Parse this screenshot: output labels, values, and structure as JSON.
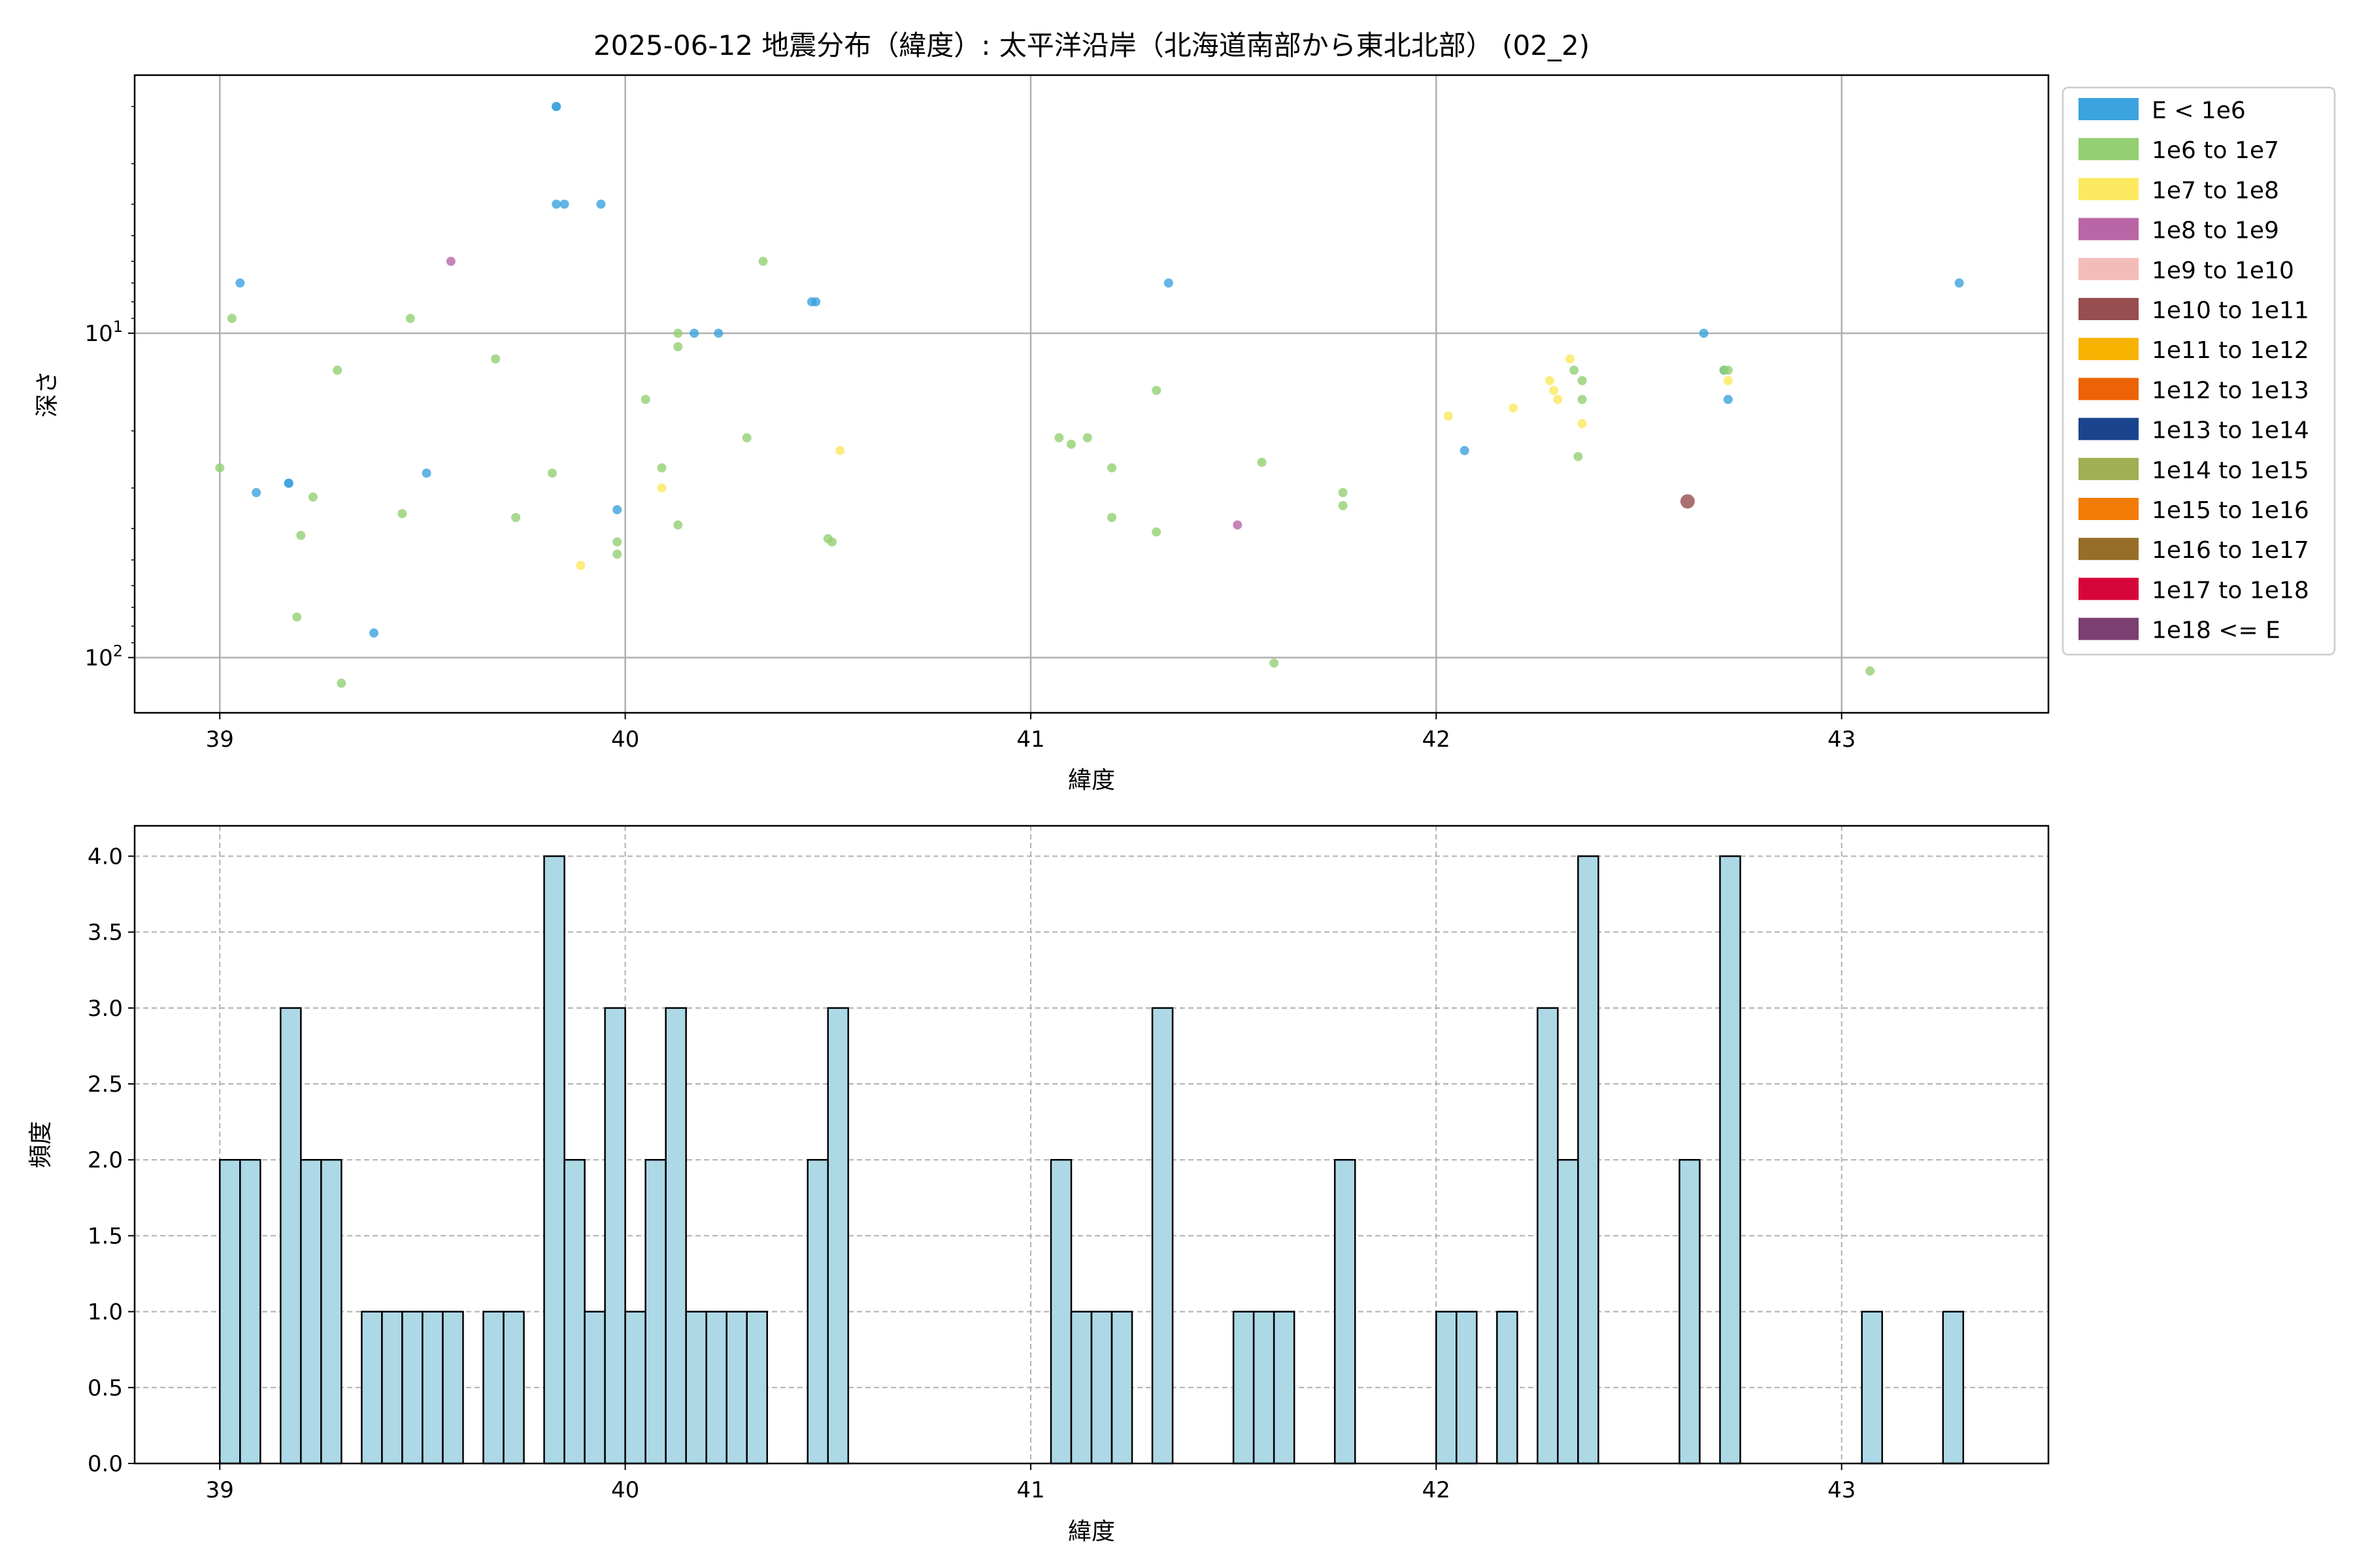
{
  "title": "2025-06-12 地震分布（緯度）: 太平洋沿岸（北海道南部から東北北部） (02_2)",
  "chart_data": [
    {
      "type": "scatter",
      "xlabel": "緯度",
      "ylabel": "深さ",
      "xlim": [
        38.79,
        43.51
      ],
      "ylim": [
        148,
        1.6
      ],
      "yscale": "log",
      "y_inverted": true,
      "grid": true,
      "xticks": [
        39,
        40,
        41,
        42,
        43
      ],
      "yticks": [
        {
          "value": 10,
          "base": "10",
          "exp": "1"
        },
        {
          "value": 100,
          "base": "10",
          "exp": "2"
        }
      ],
      "legend": {
        "placement": "outside-right",
        "entries": [
          {
            "label": "E < 1e6",
            "color": "#3ba3dd"
          },
          {
            "label": "1e6 to 1e7",
            "color": "#93cf73"
          },
          {
            "label": "1e7 to 1e8",
            "color": "#fde95f"
          },
          {
            "label": "1e8 to 1e9",
            "color": "#b966a6"
          },
          {
            "label": "1e9 to 1e10",
            "color": "#f4bcb9"
          },
          {
            "label": "1e10 to 1e11",
            "color": "#964e4e"
          },
          {
            "label": "1e11 to 1e12",
            "color": "#f8b200"
          },
          {
            "label": "1e12 to 1e13",
            "color": "#ec6204"
          },
          {
            "label": "1e13 to 1e14",
            "color": "#1a448d"
          },
          {
            "label": "1e14 to 1e15",
            "color": "#9faf51"
          },
          {
            "label": "1e15 to 1e16",
            "color": "#f17b05"
          },
          {
            "label": "1e16 to 1e17",
            "color": "#976d28"
          },
          {
            "label": "1e17 to 1e18",
            "color": "#d7063a"
          },
          {
            "label": "1e18 <= E",
            "color": "#7b3f72"
          }
        ]
      },
      "series": [
        {
          "class": 0,
          "points": [
            [
              39.05,
              7
            ],
            [
              39.09,
              31
            ],
            [
              39.17,
              29
            ],
            [
              39.17,
              29
            ],
            [
              39.38,
              84
            ],
            [
              39.51,
              27
            ],
            [
              39.83,
              2
            ],
            [
              39.83,
              2
            ],
            [
              39.83,
              4
            ],
            [
              39.85,
              4
            ],
            [
              39.94,
              4
            ],
            [
              39.98,
              35
            ],
            [
              40.17,
              10
            ],
            [
              40.23,
              10
            ],
            [
              40.46,
              8
            ],
            [
              40.47,
              8
            ],
            [
              41.34,
              7
            ],
            [
              42.07,
              23
            ],
            [
              42.66,
              10
            ],
            [
              42.71,
              13
            ],
            [
              42.72,
              16
            ],
            [
              43.29,
              7
            ]
          ]
        },
        {
          "class": 1,
          "points": [
            [
              39.0,
              26
            ],
            [
              39.03,
              9
            ],
            [
              39.19,
              75
            ],
            [
              39.2,
              42
            ],
            [
              39.23,
              32
            ],
            [
              39.29,
              13
            ],
            [
              39.3,
              120
            ],
            [
              39.45,
              36
            ],
            [
              39.47,
              9
            ],
            [
              39.68,
              12
            ],
            [
              39.73,
              37
            ],
            [
              39.82,
              27
            ],
            [
              39.98,
              44
            ],
            [
              39.98,
              48
            ],
            [
              40.05,
              16
            ],
            [
              40.09,
              26
            ],
            [
              40.13,
              10
            ],
            [
              40.13,
              11
            ],
            [
              40.13,
              39
            ],
            [
              40.3,
              21
            ],
            [
              40.34,
              6
            ],
            [
              40.5,
              43
            ],
            [
              40.51,
              44
            ],
            [
              41.07,
              21
            ],
            [
              41.1,
              22
            ],
            [
              41.14,
              21
            ],
            [
              41.2,
              26
            ],
            [
              41.2,
              37
            ],
            [
              41.31,
              15
            ],
            [
              41.31,
              41
            ],
            [
              41.57,
              25
            ],
            [
              41.6,
              104
            ],
            [
              41.77,
              31
            ],
            [
              41.77,
              34
            ],
            [
              42.34,
              13
            ],
            [
              42.35,
              24
            ],
            [
              42.36,
              14
            ],
            [
              42.36,
              16
            ],
            [
              42.71,
              13
            ],
            [
              42.72,
              13
            ],
            [
              43.07,
              110
            ]
          ]
        },
        {
          "class": 2,
          "points": [
            [
              39.89,
              52
            ],
            [
              40.09,
              30
            ],
            [
              40.53,
              23
            ],
            [
              42.03,
              18
            ],
            [
              42.19,
              17
            ],
            [
              42.28,
              14
            ],
            [
              42.29,
              15
            ],
            [
              42.3,
              16
            ],
            [
              42.33,
              12
            ],
            [
              42.36,
              19
            ],
            [
              42.72,
              14
            ]
          ]
        },
        {
          "class": 3,
          "points": [
            [
              39.57,
              6
            ],
            [
              41.51,
              39
            ]
          ]
        },
        {
          "class": 5,
          "points": [
            [
              42.62,
              33
            ]
          ]
        }
      ]
    },
    {
      "type": "bar",
      "xlabel": "緯度",
      "ylabel": "頻度",
      "xlim": [
        38.79,
        43.51
      ],
      "ylim": [
        0,
        4.2
      ],
      "grid": true,
      "xticks": [
        39,
        40,
        41,
        42,
        43
      ],
      "yticks": [
        "0.0",
        "0.5",
        "1.0",
        "1.5",
        "2.0",
        "2.5",
        "3.0",
        "3.5",
        "4.0"
      ],
      "bar_color": "#add8e6",
      "bin_width": 0.05,
      "bins": [
        [
          39.0,
          2
        ],
        [
          39.05,
          2
        ],
        [
          39.15,
          3
        ],
        [
          39.2,
          2
        ],
        [
          39.25,
          2
        ],
        [
          39.35,
          1
        ],
        [
          39.4,
          1
        ],
        [
          39.45,
          1
        ],
        [
          39.5,
          1
        ],
        [
          39.55,
          1
        ],
        [
          39.65,
          1
        ],
        [
          39.7,
          1
        ],
        [
          39.8,
          4
        ],
        [
          39.85,
          2
        ],
        [
          39.9,
          1
        ],
        [
          39.95,
          3
        ],
        [
          40.0,
          1
        ],
        [
          40.05,
          2
        ],
        [
          40.1,
          3
        ],
        [
          40.15,
          1
        ],
        [
          40.2,
          1
        ],
        [
          40.25,
          1
        ],
        [
          40.3,
          1
        ],
        [
          40.45,
          2
        ],
        [
          40.5,
          3
        ],
        [
          41.05,
          2
        ],
        [
          41.1,
          1
        ],
        [
          41.15,
          1
        ],
        [
          41.2,
          1
        ],
        [
          41.3,
          3
        ],
        [
          41.5,
          1
        ],
        [
          41.55,
          1
        ],
        [
          41.6,
          1
        ],
        [
          41.75,
          2
        ],
        [
          42.0,
          1
        ],
        [
          42.05,
          1
        ],
        [
          42.15,
          1
        ],
        [
          42.25,
          3
        ],
        [
          42.3,
          2
        ],
        [
          42.35,
          4
        ],
        [
          42.6,
          2
        ],
        [
          42.7,
          4
        ],
        [
          43.05,
          1
        ],
        [
          43.25,
          1
        ]
      ]
    }
  ]
}
